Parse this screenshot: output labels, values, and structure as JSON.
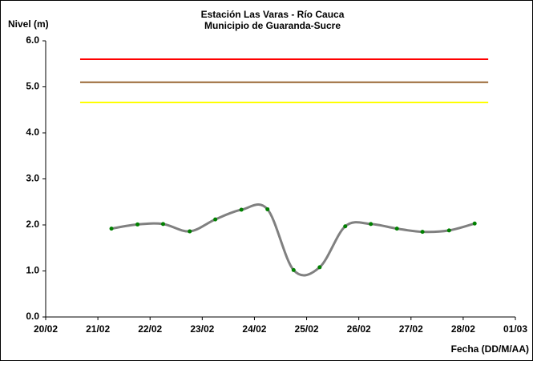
{
  "chart_data": {
    "type": "line",
    "title": "Estación Las Varas - Río Cauca",
    "subtitle": "Municipio de Guaranda-Sucre",
    "y_label": "Nivel (m)",
    "x_label": "Fecha (DD/M/AA)",
    "x": [
      1.26,
      1.76,
      2.25,
      2.76,
      3.25,
      3.75,
      4.25,
      4.75,
      5.25,
      5.74,
      6.23,
      6.73,
      7.22,
      7.73,
      8.22
    ],
    "series": [
      {
        "color": "#808080",
        "marker_color": "#008000",
        "values": [
          1.92,
          2.01,
          2.02,
          1.86,
          2.12,
          2.33,
          2.34,
          1.02,
          1.08,
          1.97,
          2.02,
          1.92,
          1.85,
          1.88,
          2.03
        ]
      }
    ],
    "thresholds": [
      {
        "value": 5.6,
        "color": "#ff0000",
        "x": [
          0.66,
          8.48
        ]
      },
      {
        "value": 5.1,
        "color": "#996633",
        "x": [
          0.66,
          8.48
        ]
      },
      {
        "value": 4.66,
        "color": "#ffff00",
        "x": [
          0.66,
          8.48
        ]
      }
    ],
    "xlim": [
      0,
      9
    ],
    "xticks": [
      {
        "value": 0,
        "label": "20/02"
      },
      {
        "value": 1,
        "label": "21/02"
      },
      {
        "value": 2,
        "label": "22/02"
      },
      {
        "value": 3,
        "label": "23/02"
      },
      {
        "value": 4,
        "label": "24/02"
      },
      {
        "value": 5,
        "label": "25/02"
      },
      {
        "value": 6,
        "label": "26/02"
      },
      {
        "value": 7,
        "label": "27/02"
      },
      {
        "value": 8,
        "label": "28/02"
      },
      {
        "value": 9,
        "label": "01/03"
      }
    ],
    "ylim": [
      0,
      6
    ],
    "yticks": [
      {
        "value": 0,
        "label": "0.0"
      },
      {
        "value": 1,
        "label": "1.0"
      },
      {
        "value": 2,
        "label": "2.0"
      },
      {
        "value": 3,
        "label": "3.0"
      },
      {
        "value": 4,
        "label": "4.0"
      },
      {
        "value": 5,
        "label": "5.0"
      },
      {
        "value": 6,
        "label": "6.0"
      }
    ],
    "smooth": true
  }
}
